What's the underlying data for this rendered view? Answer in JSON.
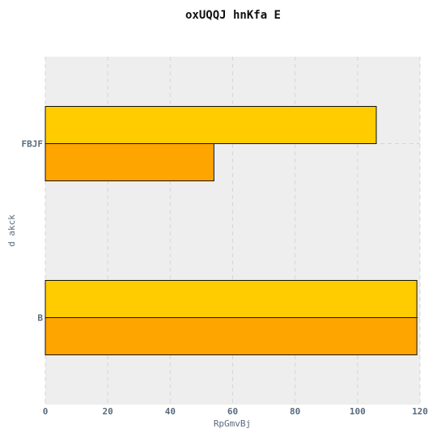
{
  "chart_data": {
    "type": "bar",
    "orientation": "horizontal",
    "title": "oxUQQJ hnKfa E",
    "xlabel": "RpGmvBj",
    "ylabel": "d akck",
    "categories": [
      "B",
      "FBJF"
    ],
    "series": [
      {
        "color": "#ffa500",
        "values": [
          119,
          54
        ]
      },
      {
        "color": "#ffcc00",
        "values": [
          119,
          106
        ]
      }
    ],
    "xlim": [
      0,
      120
    ],
    "xticks": [
      0,
      20,
      40,
      60,
      80,
      100,
      120
    ],
    "grid": true,
    "legend": "none"
  }
}
